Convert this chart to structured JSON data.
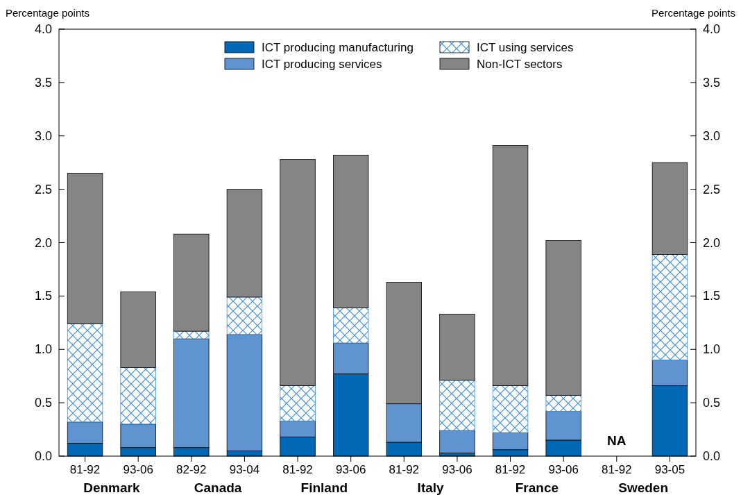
{
  "chart_data": {
    "type": "bar",
    "stacked": true,
    "legend": "top",
    "grid": false,
    "ylabel": "Percentage points",
    "y2label": "Percentage points",
    "categories": [
      "81-92",
      "93-06",
      "82-92",
      "93-04",
      "81-92",
      "93-06",
      "81-92",
      "93-06",
      "81-92",
      "93-06",
      "81-92",
      "93-05"
    ],
    "annotations": [
      "Denmark",
      "Canada",
      "Finland",
      "Italy",
      "France",
      "Sweden",
      "NA"
    ],
    "ylim": [
      0,
      4
    ],
    "yticks": [
      {
        "value": 0,
        "label": "0.0"
      },
      {
        "value": 0.5,
        "label": "0.5"
      },
      {
        "value": 1,
        "label": "1.0"
      },
      {
        "value": 1.5,
        "label": "1.5"
      },
      {
        "value": 2,
        "label": "2.0"
      },
      {
        "value": 2.5,
        "label": "2.5"
      },
      {
        "value": 3,
        "label": "3.0"
      },
      {
        "value": 3.5,
        "label": "3.5"
      },
      {
        "value": 4,
        "label": "4.0"
      }
    ],
    "y2lim": [
      0,
      4
    ],
    "y2ticks": [
      {
        "value": 0,
        "label": "0.0"
      },
      {
        "value": 0.5,
        "label": "0.5"
      },
      {
        "value": 1,
        "label": "1.0"
      },
      {
        "value": 1.5,
        "label": "1.5"
      },
      {
        "value": 2,
        "label": "2.0"
      },
      {
        "value": 2.5,
        "label": "2.5"
      },
      {
        "value": 3,
        "label": "3.0"
      },
      {
        "value": 3.5,
        "label": "3.5"
      },
      {
        "value": 4,
        "label": "4.0"
      }
    ],
    "series": [
      {
        "name": "ICT producing manufacturing",
        "color": "#0068b4",
        "values": [
          0.12,
          0.08,
          0.08,
          0.05,
          0.18,
          0.77,
          0.13,
          0.03,
          0.06,
          0.15,
          null,
          0.66
        ]
      },
      {
        "name": "ICT producing services",
        "color": "#6094d0",
        "values": [
          0.2,
          0.22,
          1.02,
          1.09,
          0.15,
          0.29,
          0.36,
          0.21,
          0.16,
          0.27,
          null,
          0.24
        ]
      },
      {
        "name": "ICT using services",
        "color": "#3d8fdc",
        "values": [
          0.92,
          0.53,
          0.07,
          0.35,
          0.33,
          0.33,
          0,
          0.47,
          0.44,
          0.15,
          null,
          0.99
        ]
      },
      {
        "name": "Non-ICT sectors",
        "color": "#858585",
        "values": [
          1.41,
          0.71,
          0.91,
          1.01,
          2.12,
          1.43,
          1.14,
          0.62,
          2.25,
          1.45,
          null,
          0.86
        ]
      }
    ]
  }
}
